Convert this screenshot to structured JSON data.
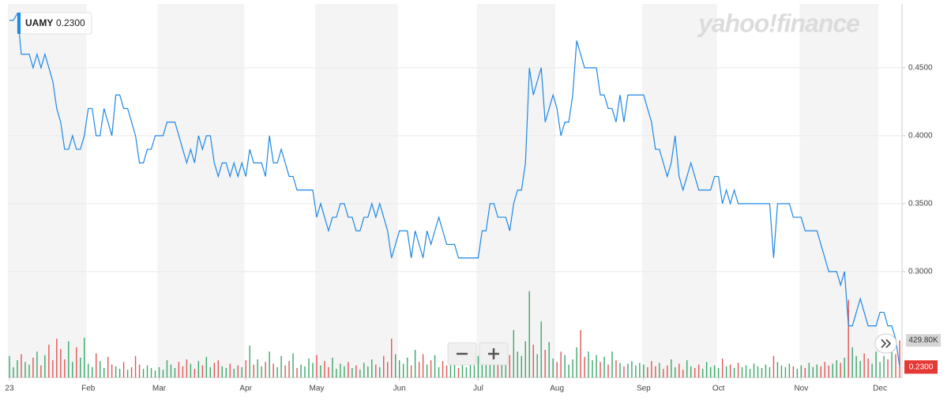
{
  "chart_data": {
    "type": "line",
    "logo": "yahoo!finance",
    "categories": [
      "23",
      null,
      null,
      null,
      null,
      null,
      null,
      null,
      null,
      null,
      null,
      null,
      null,
      null,
      null,
      null,
      null,
      null,
      null,
      null,
      "Feb",
      null,
      null,
      null,
      null,
      null,
      null,
      null,
      null,
      null,
      null,
      null,
      null,
      null,
      null,
      null,
      null,
      null,
      "Mar",
      null,
      null,
      null,
      null,
      null,
      null,
      null,
      null,
      null,
      null,
      null,
      null,
      null,
      null,
      null,
      null,
      null,
      null,
      null,
      null,
      null,
      "Apr",
      null,
      null,
      null,
      null,
      null,
      null,
      null,
      null,
      null,
      null,
      null,
      null,
      null,
      null,
      null,
      null,
      null,
      "May",
      null,
      null,
      null,
      null,
      null,
      null,
      null,
      null,
      null,
      null,
      null,
      null,
      null,
      null,
      null,
      null,
      null,
      null,
      null,
      null,
      "Jun",
      null,
      null,
      null,
      null,
      null,
      null,
      null,
      null,
      null,
      null,
      null,
      null,
      null,
      null,
      null,
      null,
      null,
      null,
      null,
      "Jul",
      null,
      null,
      null,
      null,
      null,
      null,
      null,
      null,
      null,
      null,
      null,
      null,
      null,
      null,
      null,
      null,
      null,
      null,
      null,
      "Aug",
      null,
      null,
      null,
      null,
      null,
      null,
      null,
      null,
      null,
      null,
      null,
      null,
      null,
      null,
      null,
      null,
      null,
      null,
      null,
      null,
      null,
      "Sep",
      null,
      null,
      null,
      null,
      null,
      null,
      null,
      null,
      null,
      null,
      null,
      null,
      null,
      null,
      null,
      null,
      null,
      null,
      "Oct",
      null,
      null,
      null,
      null,
      null,
      null,
      null,
      null,
      null,
      null,
      null,
      null,
      null,
      null,
      null,
      null,
      null,
      null,
      null,
      null,
      "Nov",
      null,
      null,
      null,
      null,
      null,
      null,
      null,
      null,
      null,
      null,
      null,
      null,
      null,
      null,
      null,
      null,
      null,
      null,
      null,
      "Dec",
      null,
      null,
      null,
      null,
      null
    ],
    "series": [
      {
        "name": "UAMY",
        "color": "#1e88e5",
        "values": [
          0.485,
          0.485,
          0.49,
          0.46,
          0.46,
          0.46,
          0.45,
          0.46,
          0.45,
          0.46,
          0.45,
          0.44,
          0.42,
          0.41,
          0.39,
          0.39,
          0.4,
          0.39,
          0.39,
          0.4,
          0.42,
          0.42,
          0.4,
          0.4,
          0.42,
          0.41,
          0.4,
          0.43,
          0.43,
          0.42,
          0.42,
          0.41,
          0.4,
          0.38,
          0.38,
          0.39,
          0.39,
          0.4,
          0.4,
          0.4,
          0.41,
          0.41,
          0.41,
          0.4,
          0.39,
          0.38,
          0.39,
          0.38,
          0.4,
          0.39,
          0.4,
          0.4,
          0.38,
          0.37,
          0.38,
          0.38,
          0.37,
          0.38,
          0.37,
          0.38,
          0.37,
          0.39,
          0.38,
          0.38,
          0.38,
          0.37,
          0.4,
          0.38,
          0.38,
          0.39,
          0.38,
          0.37,
          0.37,
          0.36,
          0.36,
          0.36,
          0.36,
          0.36,
          0.34,
          0.35,
          0.34,
          0.33,
          0.34,
          0.34,
          0.35,
          0.35,
          0.34,
          0.34,
          0.33,
          0.33,
          0.34,
          0.34,
          0.35,
          0.34,
          0.35,
          0.34,
          0.33,
          0.31,
          0.32,
          0.33,
          0.33,
          0.33,
          0.31,
          0.33,
          0.32,
          0.31,
          0.33,
          0.32,
          0.33,
          0.34,
          0.33,
          0.32,
          0.32,
          0.32,
          0.31,
          0.31,
          0.31,
          0.31,
          0.31,
          0.31,
          0.33,
          0.33,
          0.35,
          0.35,
          0.34,
          0.34,
          0.34,
          0.33,
          0.35,
          0.36,
          0.36,
          0.38,
          0.45,
          0.43,
          0.44,
          0.45,
          0.41,
          0.42,
          0.43,
          0.42,
          0.4,
          0.41,
          0.41,
          0.43,
          0.47,
          0.46,
          0.45,
          0.45,
          0.45,
          0.45,
          0.43,
          0.43,
          0.42,
          0.42,
          0.41,
          0.43,
          0.41,
          0.43,
          0.43,
          0.43,
          0.43,
          0.43,
          0.42,
          0.41,
          0.39,
          0.39,
          0.38,
          0.37,
          0.38,
          0.4,
          0.37,
          0.36,
          0.37,
          0.38,
          0.37,
          0.36,
          0.36,
          0.36,
          0.36,
          0.37,
          0.37,
          0.35,
          0.36,
          0.35,
          0.36,
          0.35,
          0.35,
          0.35,
          0.35,
          0.35,
          0.35,
          0.35,
          0.35,
          0.35,
          0.31,
          0.35,
          0.35,
          0.35,
          0.35,
          0.34,
          0.34,
          0.34,
          0.33,
          0.33,
          0.33,
          0.33,
          0.32,
          0.31,
          0.3,
          0.3,
          0.3,
          0.29,
          0.3,
          0.26,
          0.26,
          0.27,
          0.28,
          0.27,
          0.26,
          0.26,
          0.26,
          0.27,
          0.27,
          0.26,
          0.26,
          0.25,
          0.23
        ]
      }
    ],
    "volume": [
      250000,
      120000,
      200000,
      270000,
      180000,
      150000,
      230000,
      300000,
      140000,
      260000,
      380000,
      200000,
      450000,
      330000,
      210000,
      420000,
      180000,
      350000,
      230000,
      460000,
      160000,
      120000,
      280000,
      190000,
      110000,
      240000,
      150000,
      130000,
      100000,
      180000,
      90000,
      120000,
      250000,
      150000,
      100000,
      140000,
      110000,
      80000,
      120000,
      90000,
      200000,
      150000,
      110000,
      180000,
      130000,
      210000,
      160000,
      100000,
      190000,
      140000,
      240000,
      120000,
      170000,
      200000,
      130000,
      110000,
      160000,
      100000,
      140000,
      120000,
      200000,
      370000,
      150000,
      210000,
      130000,
      180000,
      300000,
      160000,
      120000,
      250000,
      140000,
      190000,
      280000,
      110000,
      150000,
      130000,
      220000,
      170000,
      260000,
      140000,
      190000,
      120000,
      230000,
      100000,
      160000,
      130000,
      180000,
      110000,
      140000,
      90000,
      170000,
      130000,
      210000,
      150000,
      120000,
      250000,
      180000,
      450000,
      270000,
      200000,
      160000,
      230000,
      140000,
      320000,
      180000,
      270000,
      150000,
      200000,
      260000,
      120000,
      190000,
      140000,
      230000,
      170000,
      110000,
      150000,
      120000,
      200000,
      140000,
      250000,
      180000,
      330000,
      210000,
      150000,
      280000,
      200000,
      320000,
      260000,
      550000,
      300000,
      250000,
      420000,
      1000000,
      380000,
      270000,
      650000,
      320000,
      410000,
      220000,
      180000,
      300000,
      260000,
      150000,
      210000,
      350000,
      550000,
      240000,
      300000,
      200000,
      260000,
      180000,
      240000,
      150000,
      300000,
      200000,
      170000,
      130000,
      160000,
      190000,
      140000,
      170000,
      150000,
      120000,
      190000,
      130000,
      170000,
      100000,
      140000,
      210000,
      120000,
      160000,
      90000,
      200000,
      130000,
      110000,
      150000,
      100000,
      180000,
      120000,
      140000,
      110000,
      220000,
      130000,
      150000,
      110000,
      170000,
      120000,
      140000,
      100000,
      160000,
      130000,
      110000,
      150000,
      120000,
      250000,
      180000,
      140000,
      120000,
      160000,
      130000,
      100000,
      140000,
      110000,
      170000,
      120000,
      150000,
      130000,
      180000,
      140000,
      160000,
      200000,
      170000,
      230000,
      900000,
      350000,
      250000,
      190000,
      280000,
      220000,
      160000,
      300000,
      180000,
      250000,
      210000,
      340000,
      270000,
      429800
    ],
    "volume_up_color": "#3aa769",
    "volume_down_color": "#e25555",
    "volume_label": {
      "value": 429800,
      "label": "429.80K"
    },
    "last_price": {
      "value": 0.23,
      "label": "0.2300"
    },
    "ylim": [
      0.222,
      0.497
    ],
    "yticks": [
      {
        "value": 0.3,
        "label": "0.3000"
      },
      {
        "value": 0.35,
        "label": "0.3500"
      },
      {
        "value": 0.4,
        "label": "0.4000"
      },
      {
        "value": 0.45,
        "label": "0.4500"
      }
    ],
    "grid": true
  }
}
